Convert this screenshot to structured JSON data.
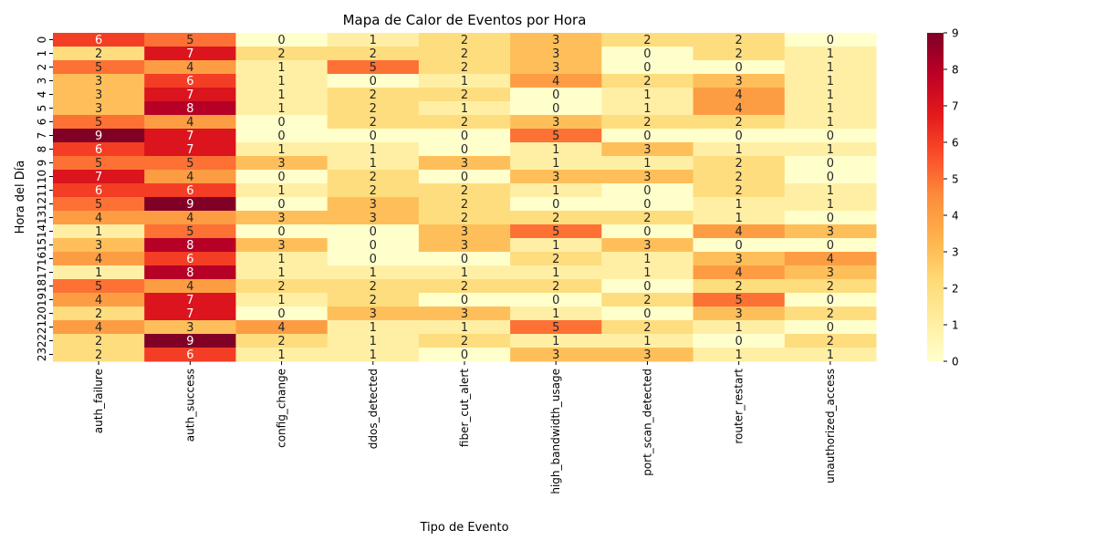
{
  "chart_data": {
    "type": "heatmap",
    "title": "Mapa de Calor de Eventos por Hora",
    "xlabel": "Tipo de Evento",
    "ylabel": "Hora del Día",
    "x_categories": [
      "auth_failure",
      "auth_success",
      "config_change",
      "ddos_detected",
      "fiber_cut_alert",
      "high_bandwidth_usage",
      "port_scan_detected",
      "router_restart",
      "unauthorized_access"
    ],
    "y_categories": [
      "0",
      "1",
      "2",
      "3",
      "4",
      "5",
      "6",
      "7",
      "8",
      "9",
      "10",
      "11",
      "12",
      "13",
      "14",
      "15",
      "16",
      "17",
      "18",
      "19",
      "20",
      "21",
      "22",
      "23"
    ],
    "values": [
      [
        6,
        5,
        0,
        1,
        2,
        3,
        2,
        2,
        0
      ],
      [
        2,
        7,
        2,
        2,
        2,
        3,
        0,
        2,
        1
      ],
      [
        5,
        4,
        1,
        5,
        2,
        3,
        0,
        0,
        1
      ],
      [
        3,
        6,
        1,
        0,
        1,
        4,
        2,
        3,
        1
      ],
      [
        3,
        7,
        1,
        2,
        2,
        0,
        1,
        4,
        1
      ],
      [
        3,
        8,
        1,
        2,
        1,
        0,
        1,
        4,
        1
      ],
      [
        5,
        4,
        0,
        2,
        2,
        3,
        2,
        2,
        1
      ],
      [
        9,
        7,
        0,
        0,
        0,
        5,
        0,
        0,
        0
      ],
      [
        6,
        7,
        1,
        1,
        0,
        1,
        3,
        1,
        1
      ],
      [
        5,
        5,
        3,
        1,
        3,
        1,
        1,
        2,
        0
      ],
      [
        7,
        4,
        0,
        2,
        0,
        3,
        3,
        2,
        0
      ],
      [
        6,
        6,
        1,
        2,
        2,
        1,
        0,
        2,
        1
      ],
      [
        5,
        9,
        0,
        3,
        2,
        0,
        0,
        1,
        1
      ],
      [
        4,
        4,
        3,
        3,
        2,
        2,
        2,
        1,
        0
      ],
      [
        1,
        5,
        0,
        0,
        3,
        5,
        0,
        4,
        3
      ],
      [
        3,
        8,
        3,
        0,
        3,
        1,
        3,
        0,
        0
      ],
      [
        4,
        6,
        1,
        0,
        0,
        2,
        1,
        3,
        4
      ],
      [
        1,
        8,
        1,
        1,
        1,
        1,
        1,
        4,
        3
      ],
      [
        5,
        4,
        2,
        2,
        2,
        2,
        0,
        2,
        2
      ],
      [
        4,
        7,
        1,
        2,
        0,
        0,
        2,
        5,
        0
      ],
      [
        2,
        7,
        0,
        3,
        3,
        1,
        0,
        3,
        2
      ],
      [
        4,
        3,
        4,
        1,
        1,
        5,
        2,
        1,
        0
      ],
      [
        2,
        9,
        2,
        1,
        2,
        1,
        1,
        0,
        2
      ],
      [
        2,
        6,
        1,
        1,
        0,
        3,
        3,
        1,
        1
      ]
    ],
    "vmin": 0,
    "vmax": 9,
    "colorbar_ticks": [
      "0",
      "1",
      "2",
      "3",
      "4",
      "5",
      "6",
      "7",
      "8",
      "9"
    ],
    "colormap": "YlOrRd",
    "grid": false
  }
}
